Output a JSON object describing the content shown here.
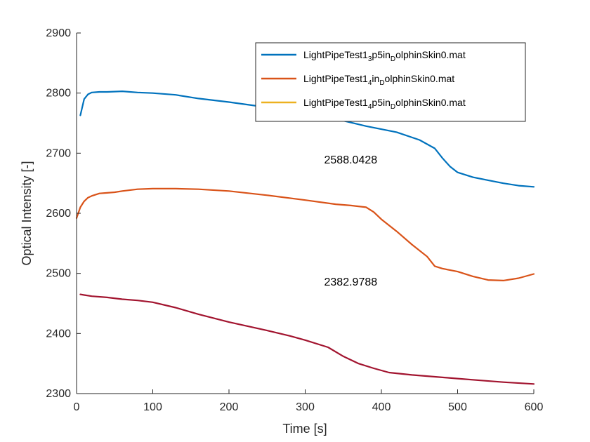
{
  "chart_data": {
    "type": "line",
    "title": "",
    "xlabel": "Time [s]",
    "ylabel": "Optical Intensity [-]",
    "xlim": [
      0,
      600
    ],
    "ylim": [
      2300,
      2900
    ],
    "xticks": [
      0,
      100,
      200,
      300,
      400,
      500,
      600
    ],
    "yticks": [
      2300,
      2400,
      2500,
      2600,
      2700,
      2800,
      2900
    ],
    "grid": false,
    "legend_position": "top-right",
    "series": [
      {
        "name_parts": [
          "LightPipeTest1",
          "3",
          "p5in",
          "D",
          "olphinSkin0.mat"
        ],
        "color": "#0072BD",
        "x": [
          5,
          10,
          15,
          20,
          30,
          40,
          60,
          80,
          100,
          130,
          160,
          200,
          240,
          280,
          300,
          340,
          380,
          420,
          450,
          470,
          480,
          490,
          500,
          520,
          540,
          560,
          580,
          600
        ],
        "y": [
          2763,
          2790,
          2798,
          2801,
          2802,
          2802,
          2803,
          2801,
          2800,
          2797,
          2791,
          2785,
          2778,
          2772,
          2766,
          2757,
          2745,
          2735,
          2722,
          2708,
          2692,
          2678,
          2668,
          2660,
          2655,
          2650,
          2646,
          2644
        ]
      },
      {
        "name_parts": [
          "LightPipeTest1",
          "4",
          "in",
          "D",
          "olphinSkin0.mat"
        ],
        "color": "#D95319",
        "x": [
          0,
          5,
          10,
          15,
          20,
          30,
          40,
          50,
          60,
          80,
          100,
          130,
          160,
          200,
          250,
          300,
          340,
          360,
          380,
          390,
          400,
          420,
          440,
          460,
          470,
          480,
          500,
          520,
          540,
          560,
          580,
          600
        ],
        "y": [
          2592,
          2610,
          2620,
          2626,
          2629,
          2633,
          2634,
          2635,
          2637,
          2640,
          2641,
          2641,
          2640,
          2637,
          2630,
          2622,
          2615,
          2613,
          2610,
          2602,
          2590,
          2570,
          2548,
          2528,
          2512,
          2508,
          2503,
          2495,
          2489,
          2488,
          2492,
          2499
        ]
      },
      {
        "name_parts": [
          "LightPipeTest1",
          "4",
          "p5in",
          "D",
          "olphinSkin0.mat"
        ],
        "color": "#EDB120",
        "x": [],
        "y": []
      },
      {
        "name_parts": [],
        "color": "#A2142F",
        "x": [
          5,
          10,
          20,
          40,
          60,
          80,
          100,
          130,
          160,
          200,
          250,
          280,
          300,
          330,
          350,
          370,
          390,
          410,
          440,
          470,
          500,
          530,
          560,
          600
        ],
        "y": [
          2465,
          2464,
          2462,
          2460,
          2457,
          2455,
          2452,
          2443,
          2432,
          2419,
          2405,
          2396,
          2389,
          2377,
          2362,
          2350,
          2342,
          2335,
          2331,
          2328,
          2325,
          2322,
          2319,
          2316
        ]
      }
    ],
    "annotations": [
      {
        "text": "2588.0428",
        "x": 300,
        "y": 2683
      },
      {
        "text": "2382.9788",
        "x": 300,
        "y": 2480
      }
    ]
  }
}
